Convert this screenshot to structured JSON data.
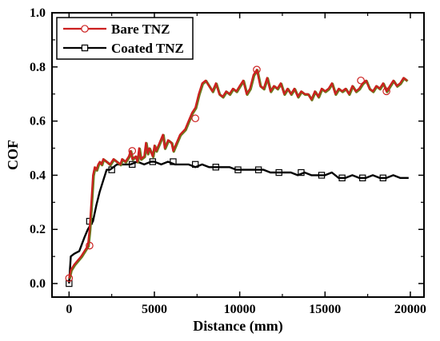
{
  "chart_data": {
    "type": "line",
    "title": "",
    "xlabel": "Distance (mm)",
    "ylabel": "COF",
    "xlim": [
      -1000,
      20800
    ],
    "ylim": [
      -0.05,
      1.0
    ],
    "xticks": [
      0,
      5000,
      10000,
      15000,
      20000
    ],
    "yticks": [
      0.0,
      0.2,
      0.4,
      0.6,
      0.8,
      1.0
    ],
    "xtick_labels": [
      "0",
      "5000",
      "10000",
      "15000",
      "20000"
    ],
    "ytick_labels": [
      "0.0",
      "0.2",
      "0.4",
      "0.6",
      "0.8",
      "1.0"
    ],
    "grid": false,
    "legend_position": "top-left",
    "series": [
      {
        "name": "Bare TNZ",
        "color": "#cc1f1f",
        "shadow_color": "#6b7a1c",
        "marker": "circle",
        "x": [
          0,
          100,
          300,
          700,
          1100,
          1200,
          1300,
          1400,
          1500,
          1600,
          1700,
          1800,
          1900,
          2000,
          2200,
          2400,
          2600,
          2800,
          3000,
          3100,
          3300,
          3500,
          3600,
          3700,
          3900,
          4000,
          4100,
          4200,
          4400,
          4500,
          4600,
          4700,
          4900,
          5000,
          5100,
          5300,
          5500,
          5600,
          5800,
          6000,
          6100,
          6300,
          6500,
          6800,
          7000,
          7200,
          7400,
          7600,
          7800,
          8000,
          8200,
          8400,
          8600,
          8800,
          9000,
          9200,
          9400,
          9600,
          9800,
          10000,
          10200,
          10400,
          10600,
          10800,
          11000,
          11200,
          11400,
          11600,
          11800,
          12000,
          12200,
          12400,
          12600,
          12800,
          13000,
          13200,
          13400,
          13600,
          13800,
          14000,
          14200,
          14400,
          14600,
          14800,
          15000,
          15200,
          15400,
          15600,
          15800,
          16000,
          16200,
          16400,
          16600,
          16800,
          17000,
          17200,
          17400,
          17600,
          17800,
          18000,
          18200,
          18400,
          18600,
          18800,
          19000,
          19200,
          19400,
          19600,
          19800
        ],
        "values": [
          0.02,
          0.05,
          0.07,
          0.1,
          0.14,
          0.2,
          0.3,
          0.4,
          0.43,
          0.42,
          0.44,
          0.45,
          0.44,
          0.46,
          0.45,
          0.44,
          0.46,
          0.45,
          0.44,
          0.46,
          0.45,
          0.47,
          0.49,
          0.46,
          0.47,
          0.45,
          0.5,
          0.46,
          0.47,
          0.52,
          0.48,
          0.5,
          0.47,
          0.51,
          0.49,
          0.52,
          0.55,
          0.5,
          0.53,
          0.52,
          0.49,
          0.52,
          0.55,
          0.57,
          0.6,
          0.63,
          0.65,
          0.7,
          0.74,
          0.75,
          0.73,
          0.71,
          0.74,
          0.7,
          0.69,
          0.71,
          0.7,
          0.72,
          0.71,
          0.73,
          0.75,
          0.7,
          0.72,
          0.77,
          0.79,
          0.73,
          0.72,
          0.76,
          0.71,
          0.73,
          0.72,
          0.74,
          0.7,
          0.72,
          0.7,
          0.72,
          0.69,
          0.71,
          0.7,
          0.7,
          0.68,
          0.71,
          0.69,
          0.72,
          0.71,
          0.72,
          0.74,
          0.7,
          0.72,
          0.71,
          0.72,
          0.7,
          0.73,
          0.71,
          0.72,
          0.74,
          0.75,
          0.72,
          0.71,
          0.73,
          0.72,
          0.74,
          0.71,
          0.73,
          0.75,
          0.73,
          0.74,
          0.76,
          0.75
        ],
        "marker_x": [
          0,
          1200,
          3700,
          7400,
          11000,
          17100,
          18600
        ],
        "marker_values": [
          0.02,
          0.14,
          0.49,
          0.61,
          0.79,
          0.75,
          0.71
        ]
      },
      {
        "name": "Coated TNZ",
        "color": "#000000",
        "marker": "square",
        "x": [
          0,
          100,
          300,
          600,
          900,
          1100,
          1200,
          1400,
          1600,
          1800,
          2000,
          2200,
          2400,
          2600,
          2800,
          3000,
          3300,
          3600,
          4000,
          4400,
          4800,
          5000,
          5400,
          5800,
          6200,
          6600,
          7000,
          7400,
          7800,
          8200,
          8600,
          9000,
          9400,
          9800,
          10200,
          10600,
          11000,
          11400,
          11800,
          12200,
          12600,
          13000,
          13400,
          13800,
          14200,
          14600,
          15000,
          15400,
          15800,
          16200,
          16600,
          17000,
          17400,
          17800,
          18200,
          18600,
          19000,
          19400,
          19900
        ],
        "values": [
          0.0,
          0.1,
          0.11,
          0.12,
          0.17,
          0.2,
          0.21,
          0.23,
          0.29,
          0.34,
          0.38,
          0.42,
          0.42,
          0.43,
          0.44,
          0.44,
          0.44,
          0.44,
          0.45,
          0.44,
          0.45,
          0.45,
          0.44,
          0.45,
          0.44,
          0.44,
          0.44,
          0.43,
          0.44,
          0.43,
          0.43,
          0.43,
          0.43,
          0.42,
          0.42,
          0.42,
          0.42,
          0.42,
          0.41,
          0.41,
          0.41,
          0.41,
          0.4,
          0.41,
          0.4,
          0.4,
          0.4,
          0.41,
          0.39,
          0.39,
          0.4,
          0.39,
          0.39,
          0.4,
          0.39,
          0.39,
          0.4,
          0.39,
          0.39
        ],
        "marker_x": [
          0,
          1200,
          2500,
          3700,
          4900,
          6100,
          7400,
          8600,
          9900,
          11100,
          12300,
          13600,
          14800,
          16000,
          17200,
          18400
        ],
        "marker_values": [
          0.0,
          0.23,
          0.42,
          0.44,
          0.45,
          0.45,
          0.44,
          0.43,
          0.42,
          0.42,
          0.41,
          0.41,
          0.4,
          0.39,
          0.39,
          0.39
        ]
      }
    ],
    "legend": {
      "entries": [
        "Bare TNZ",
        "Coated TNZ"
      ]
    }
  }
}
